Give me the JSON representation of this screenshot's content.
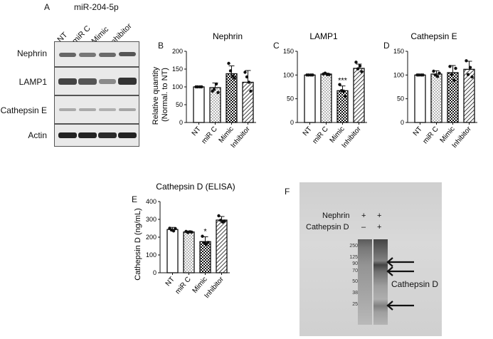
{
  "panel_letters": {
    "a": "A",
    "b": "B",
    "c": "C",
    "d": "D",
    "e": "E",
    "f": "F"
  },
  "panel_a": {
    "title": "miR-204-5p",
    "lanes": [
      "NT",
      "miR C",
      "Mimic",
      "Inhibitor"
    ],
    "blots": [
      "Nephrin",
      "LAMP1",
      "Cathepsin E",
      "Actin"
    ]
  },
  "chart_data": [
    {
      "panel": "B",
      "type": "bar",
      "title": "Nephrin",
      "ylabel": "Relative quantity (Normal. to NT)",
      "categories": [
        "NT",
        "miR C",
        "Mimic",
        "Inhibitor"
      ],
      "values": [
        100,
        98,
        137,
        113
      ],
      "errors": [
        0,
        13,
        22,
        33
      ],
      "points": [
        [
          100,
          100,
          100,
          100
        ],
        [
          88,
          93,
          108,
          84
        ],
        [
          166,
          145,
          130,
          125
        ],
        [
          141,
          128,
          113,
          88
        ]
      ],
      "ylim": [
        0,
        200
      ],
      "yticks": [
        "0",
        "50",
        "100",
        "150",
        "200"
      ],
      "patterns": [
        "white",
        "dots",
        "check",
        "hatch"
      ],
      "significance": [
        "",
        "",
        "",
        ""
      ]
    },
    {
      "panel": "C",
      "type": "bar",
      "title": "LAMP1",
      "ylabel": "",
      "categories": [
        "NT",
        "miR C",
        "Mimic",
        "Inhibitor"
      ],
      "values": [
        100,
        102,
        67,
        114
      ],
      "errors": [
        0,
        2,
        10,
        9
      ],
      "points": [
        [
          100,
          100,
          100,
          100
        ],
        [
          102,
          104,
          101,
          101
        ],
        [
          80,
          67,
          66,
          55
        ],
        [
          127,
          113,
          119,
          107
        ]
      ],
      "ylim": [
        0,
        150
      ],
      "yticks": [
        "0",
        "50",
        "100",
        "150"
      ],
      "patterns": [
        "white",
        "dots",
        "check",
        "hatch"
      ],
      "significance": [
        "",
        "",
        "***",
        ""
      ]
    },
    {
      "panel": "D",
      "type": "bar",
      "title": "Cathepsin E",
      "ylabel": "",
      "categories": [
        "NT",
        "miR C",
        "Mimic",
        "Inhibitor"
      ],
      "values": [
        100,
        102,
        105,
        112
      ],
      "errors": [
        0,
        7,
        15,
        17
      ],
      "points": [
        [
          100,
          100,
          100,
          100
        ],
        [
          108,
          100,
          97,
          104
        ],
        [
          118,
          101,
          89,
          114
        ],
        [
          130,
          101,
          116,
          96
        ]
      ],
      "ylim": [
        0,
        150
      ],
      "yticks": [
        "0",
        "50",
        "100",
        "150"
      ],
      "patterns": [
        "white",
        "dots",
        "check",
        "hatch"
      ],
      "significance": [
        "",
        "",
        "",
        ""
      ]
    },
    {
      "panel": "E",
      "type": "bar",
      "title": "Cathepsin D (ELISA)",
      "ylabel": "Cathepsin D (ng/mL)",
      "categories": [
        "NT",
        "miR C",
        "Mimic",
        "Inhibitor"
      ],
      "values": [
        243,
        229,
        175,
        296
      ],
      "errors": [
        12,
        6,
        27,
        20
      ],
      "points": [
        [
          250,
          240,
          235,
          248
        ],
        [
          232,
          226,
          230,
          228
        ],
        [
          205,
          168,
          160,
          170
        ],
        [
          320,
          295,
          285,
          290
        ]
      ],
      "ylim": [
        0,
        400
      ],
      "yticks": [
        "0",
        "100",
        "200",
        "300",
        "400"
      ],
      "patterns": [
        "white",
        "dots",
        "check",
        "hatch"
      ],
      "significance": [
        "",
        "",
        "*",
        ""
      ]
    }
  ],
  "panel_f": {
    "header_rows": [
      {
        "label": "Nephrin",
        "lane1": "+",
        "lane2": "+"
      },
      {
        "label": "Cathepsin D",
        "lane1": "–",
        "lane2": "+"
      }
    ],
    "markers": [
      "250",
      "125",
      "90",
      "70",
      "50",
      "38",
      "25"
    ],
    "annotation": "Cathepsin D"
  }
}
